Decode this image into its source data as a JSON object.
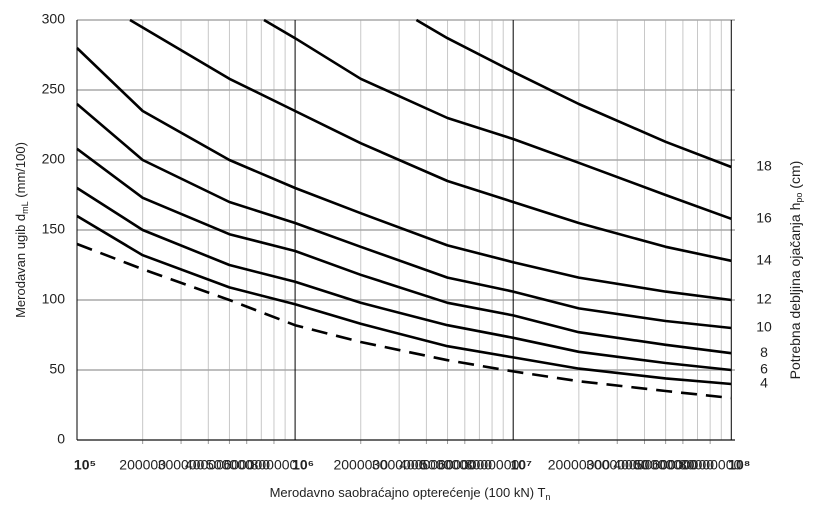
{
  "chart_data": {
    "type": "line",
    "y_label": [
      "Merodavan ugib d",
      "mL",
      " (mm/100)"
    ],
    "x_label": [
      "Merodavno saobraćajno opterećenje (100 kN) T",
      "n"
    ],
    "y2_label": [
      "Potrebna debljina ojačanja h",
      "po",
      " (cm)"
    ],
    "log_x": true,
    "xlim": [
      100000,
      104000000
    ],
    "ylim": [
      0,
      300
    ],
    "yticks": [
      0,
      50,
      100,
      150,
      200,
      250,
      300
    ],
    "xticks": [
      {
        "value": 100000,
        "label": "10⁵"
      },
      200000,
      300000,
      400000,
      500000,
      600000,
      800000,
      {
        "value": 1000000,
        "label": "10⁶"
      },
      2000000,
      3000000,
      4000000,
      5000000,
      6000000,
      8000000,
      {
        "value": 10000000,
        "label": "10⁷"
      },
      20000000,
      30000000,
      40000000,
      50000000,
      60000000,
      80000000,
      {
        "value": 100000000,
        "label": "10⁸"
      }
    ],
    "xtick_labels": [
      "10⁵",
      "2",
      "3",
      "4",
      "5",
      "6",
      "8",
      "10⁶",
      "2",
      "3",
      "4",
      "5",
      "6",
      "8",
      "10⁷",
      "2",
      "3",
      "4",
      "5",
      "6",
      "8",
      "10⁸"
    ],
    "grid": true,
    "series": [
      {
        "color": "#000000",
        "dashed": true,
        "x": [
          100000,
          200000,
          500000,
          1000000,
          2000000,
          5000000,
          10000000,
          20000000,
          50000000,
          100000000
        ],
        "values": [
          140,
          122,
          100,
          82,
          70,
          57,
          49,
          42,
          35,
          30
        ]
      },
      {
        "name": "4",
        "color": "#000000",
        "x": [
          100000,
          200000,
          500000,
          1000000,
          2000000,
          5000000,
          10000000,
          20000000,
          50000000,
          100000000
        ],
        "values": [
          160,
          132,
          109,
          97,
          83,
          67,
          59,
          51,
          44,
          40
        ]
      },
      {
        "name": "6",
        "color": "#000000",
        "x": [
          100000,
          200000,
          500000,
          1000000,
          2000000,
          5000000,
          10000000,
          20000000,
          50000000,
          100000000
        ],
        "values": [
          180,
          150,
          125,
          113,
          98,
          82,
          73,
          63,
          55,
          50
        ]
      },
      {
        "name": "8",
        "color": "#000000",
        "x": [
          100000,
          200000,
          500000,
          1000000,
          2000000,
          5000000,
          10000000,
          20000000,
          50000000,
          100000000
        ],
        "values": [
          208,
          173,
          147,
          135,
          118,
          98,
          89,
          77,
          68,
          62
        ]
      },
      {
        "name": "10",
        "color": "#000000",
        "x": [
          100000,
          200000,
          500000,
          1000000,
          2000000,
          5000000,
          10000000,
          20000000,
          50000000,
          100000000
        ],
        "values": [
          240,
          200,
          170,
          155,
          138,
          116,
          106,
          94,
          85,
          80
        ]
      },
      {
        "name": "12",
        "color": "#000000",
        "x": [
          100000,
          200000,
          500000,
          1000000,
          2000000,
          5000000,
          10000000,
          20000000,
          50000000,
          100000000
        ],
        "values": [
          280,
          235,
          200,
          180,
          162,
          139,
          127,
          116,
          106,
          100
        ]
      },
      {
        "name": "14",
        "color": "#000000",
        "x": [
          175000,
          500000,
          1000000,
          2000000,
          5000000,
          10000000,
          20000000,
          50000000,
          100000000
        ],
        "values": [
          300,
          258,
          235,
          212,
          185,
          170,
          155,
          138,
          128
        ]
      },
      {
        "name": "16",
        "color": "#000000",
        "x": [
          720000,
          1000000,
          2000000,
          5000000,
          10000000,
          20000000,
          50000000,
          100000000
        ],
        "values": [
          300,
          287,
          258,
          230,
          215,
          198,
          175,
          158
        ]
      },
      {
        "name": "18",
        "color": "#000000",
        "x": [
          3600000,
          5000000,
          10000000,
          20000000,
          50000000,
          100000000
        ],
        "values": [
          300,
          287,
          263,
          240,
          213,
          195
        ]
      }
    ]
  }
}
